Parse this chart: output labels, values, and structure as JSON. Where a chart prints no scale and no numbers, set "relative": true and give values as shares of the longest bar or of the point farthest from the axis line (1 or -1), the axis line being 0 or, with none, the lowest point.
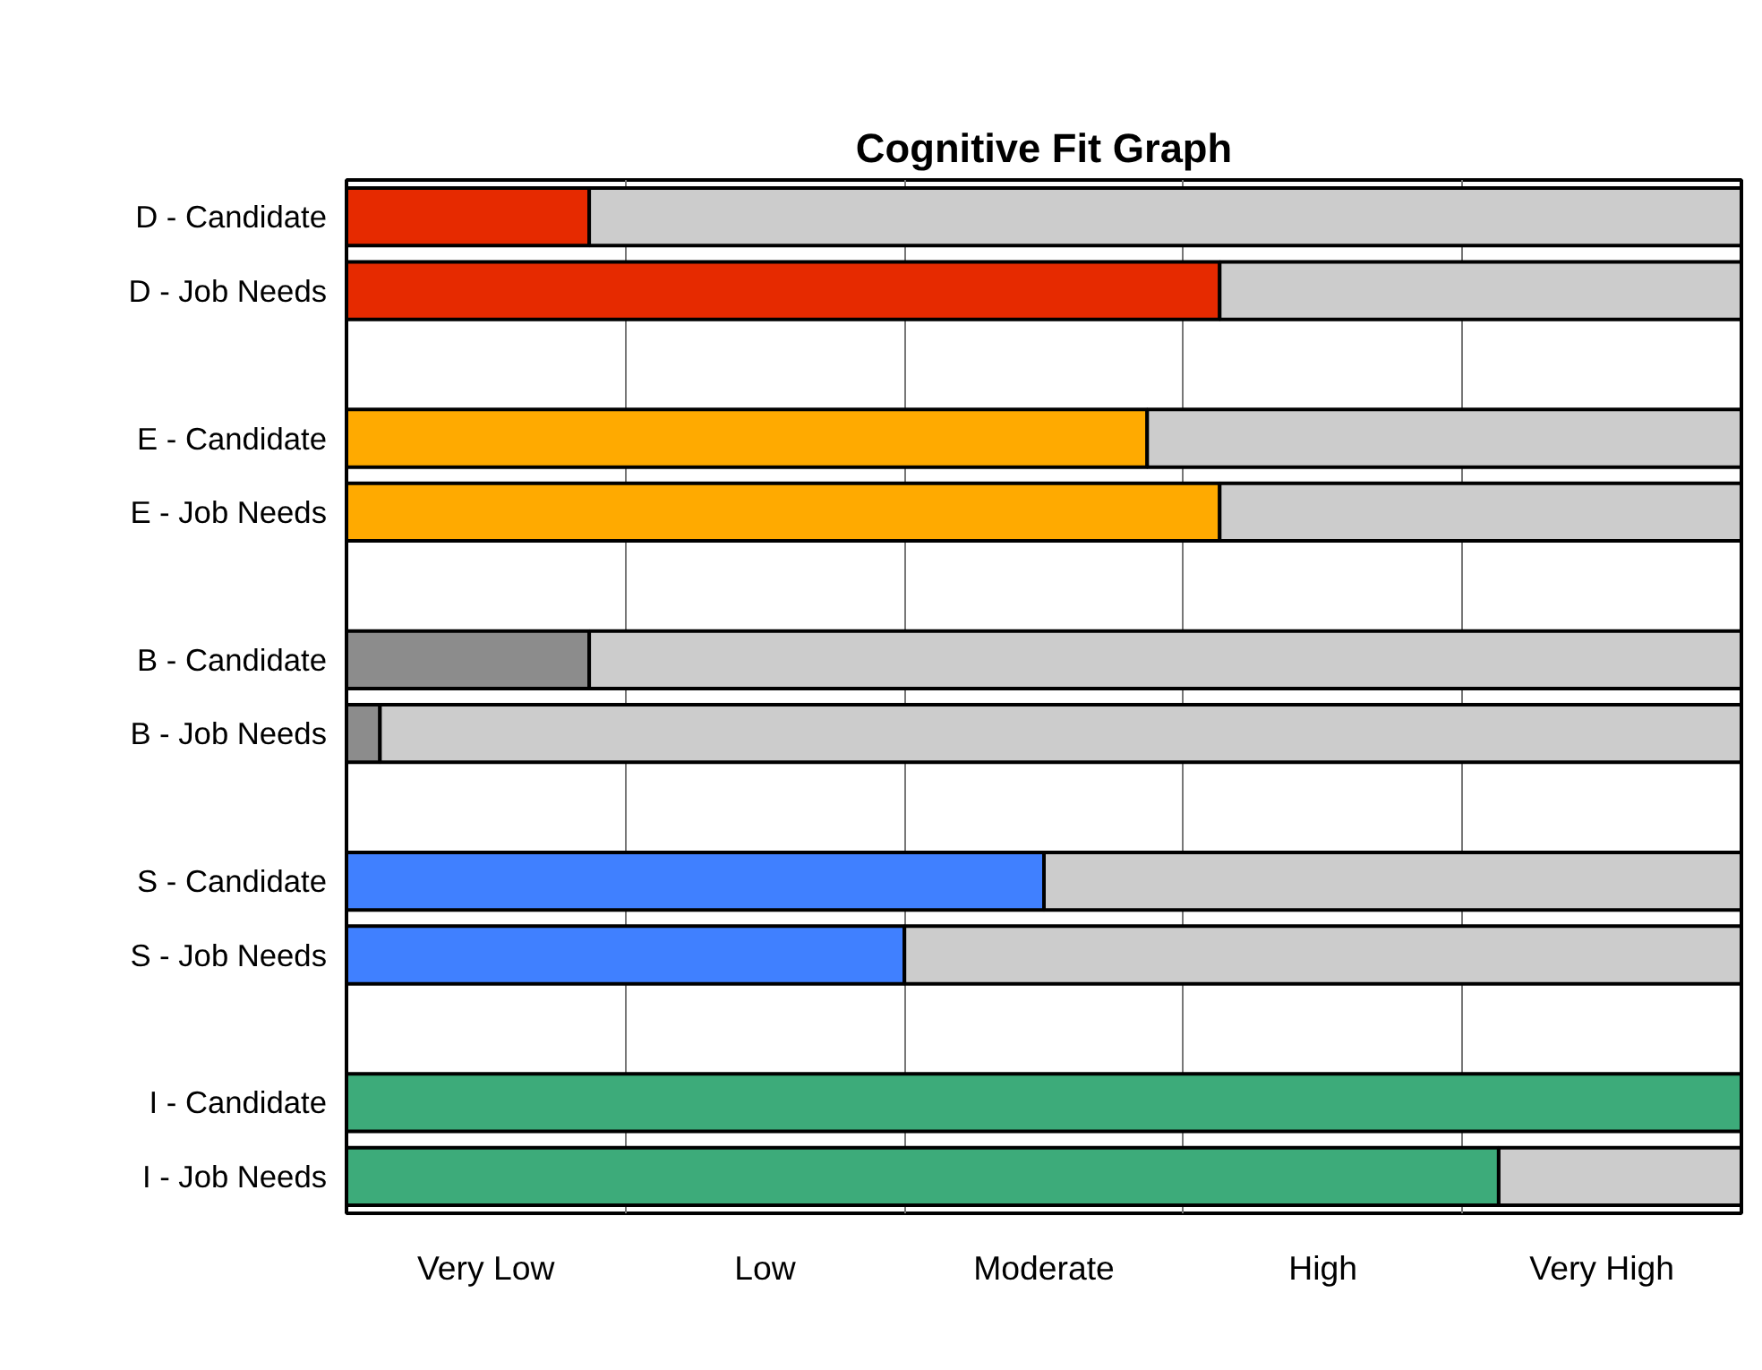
{
  "chart_data": {
    "type": "bar",
    "orientation": "horizontal",
    "stacked": true,
    "relative": true,
    "title": "Cognitive Fit Graph",
    "categories": [
      "D - Candidate",
      "D - Job Needs",
      null,
      "E - Candidate",
      "E - Job Needs",
      null,
      "B - Candidate",
      "B - Job Needs",
      null,
      "S - Candidate",
      "S - Job Needs",
      null,
      "I - Candidate",
      "I - Job Needs"
    ],
    "series": [
      {
        "colors": [
          "#e62a00",
          "#e62a00",
          null,
          "#ffaa00",
          "#ffaa00",
          null,
          "#8c8c8c",
          "#8c8c8c",
          null,
          "#4080ff",
          "#4080ff",
          null,
          "#3dab7a",
          "#3dab7a"
        ],
        "values": [
          0.174,
          0.626,
          null,
          0.574,
          0.626,
          null,
          0.174,
          0.024,
          null,
          0.5,
          0.4,
          null,
          1.0,
          0.826
        ]
      },
      {
        "color": "#cccccc",
        "values": [
          0.826,
          0.374,
          null,
          0.426,
          0.374,
          null,
          0.826,
          0.976,
          null,
          0.5,
          0.6,
          null,
          null,
          0.174
        ]
      }
    ],
    "annotations": [
      "Very Low",
      "Low",
      "Moderate",
      "High",
      "Very High"
    ],
    "grid": "x"
  }
}
